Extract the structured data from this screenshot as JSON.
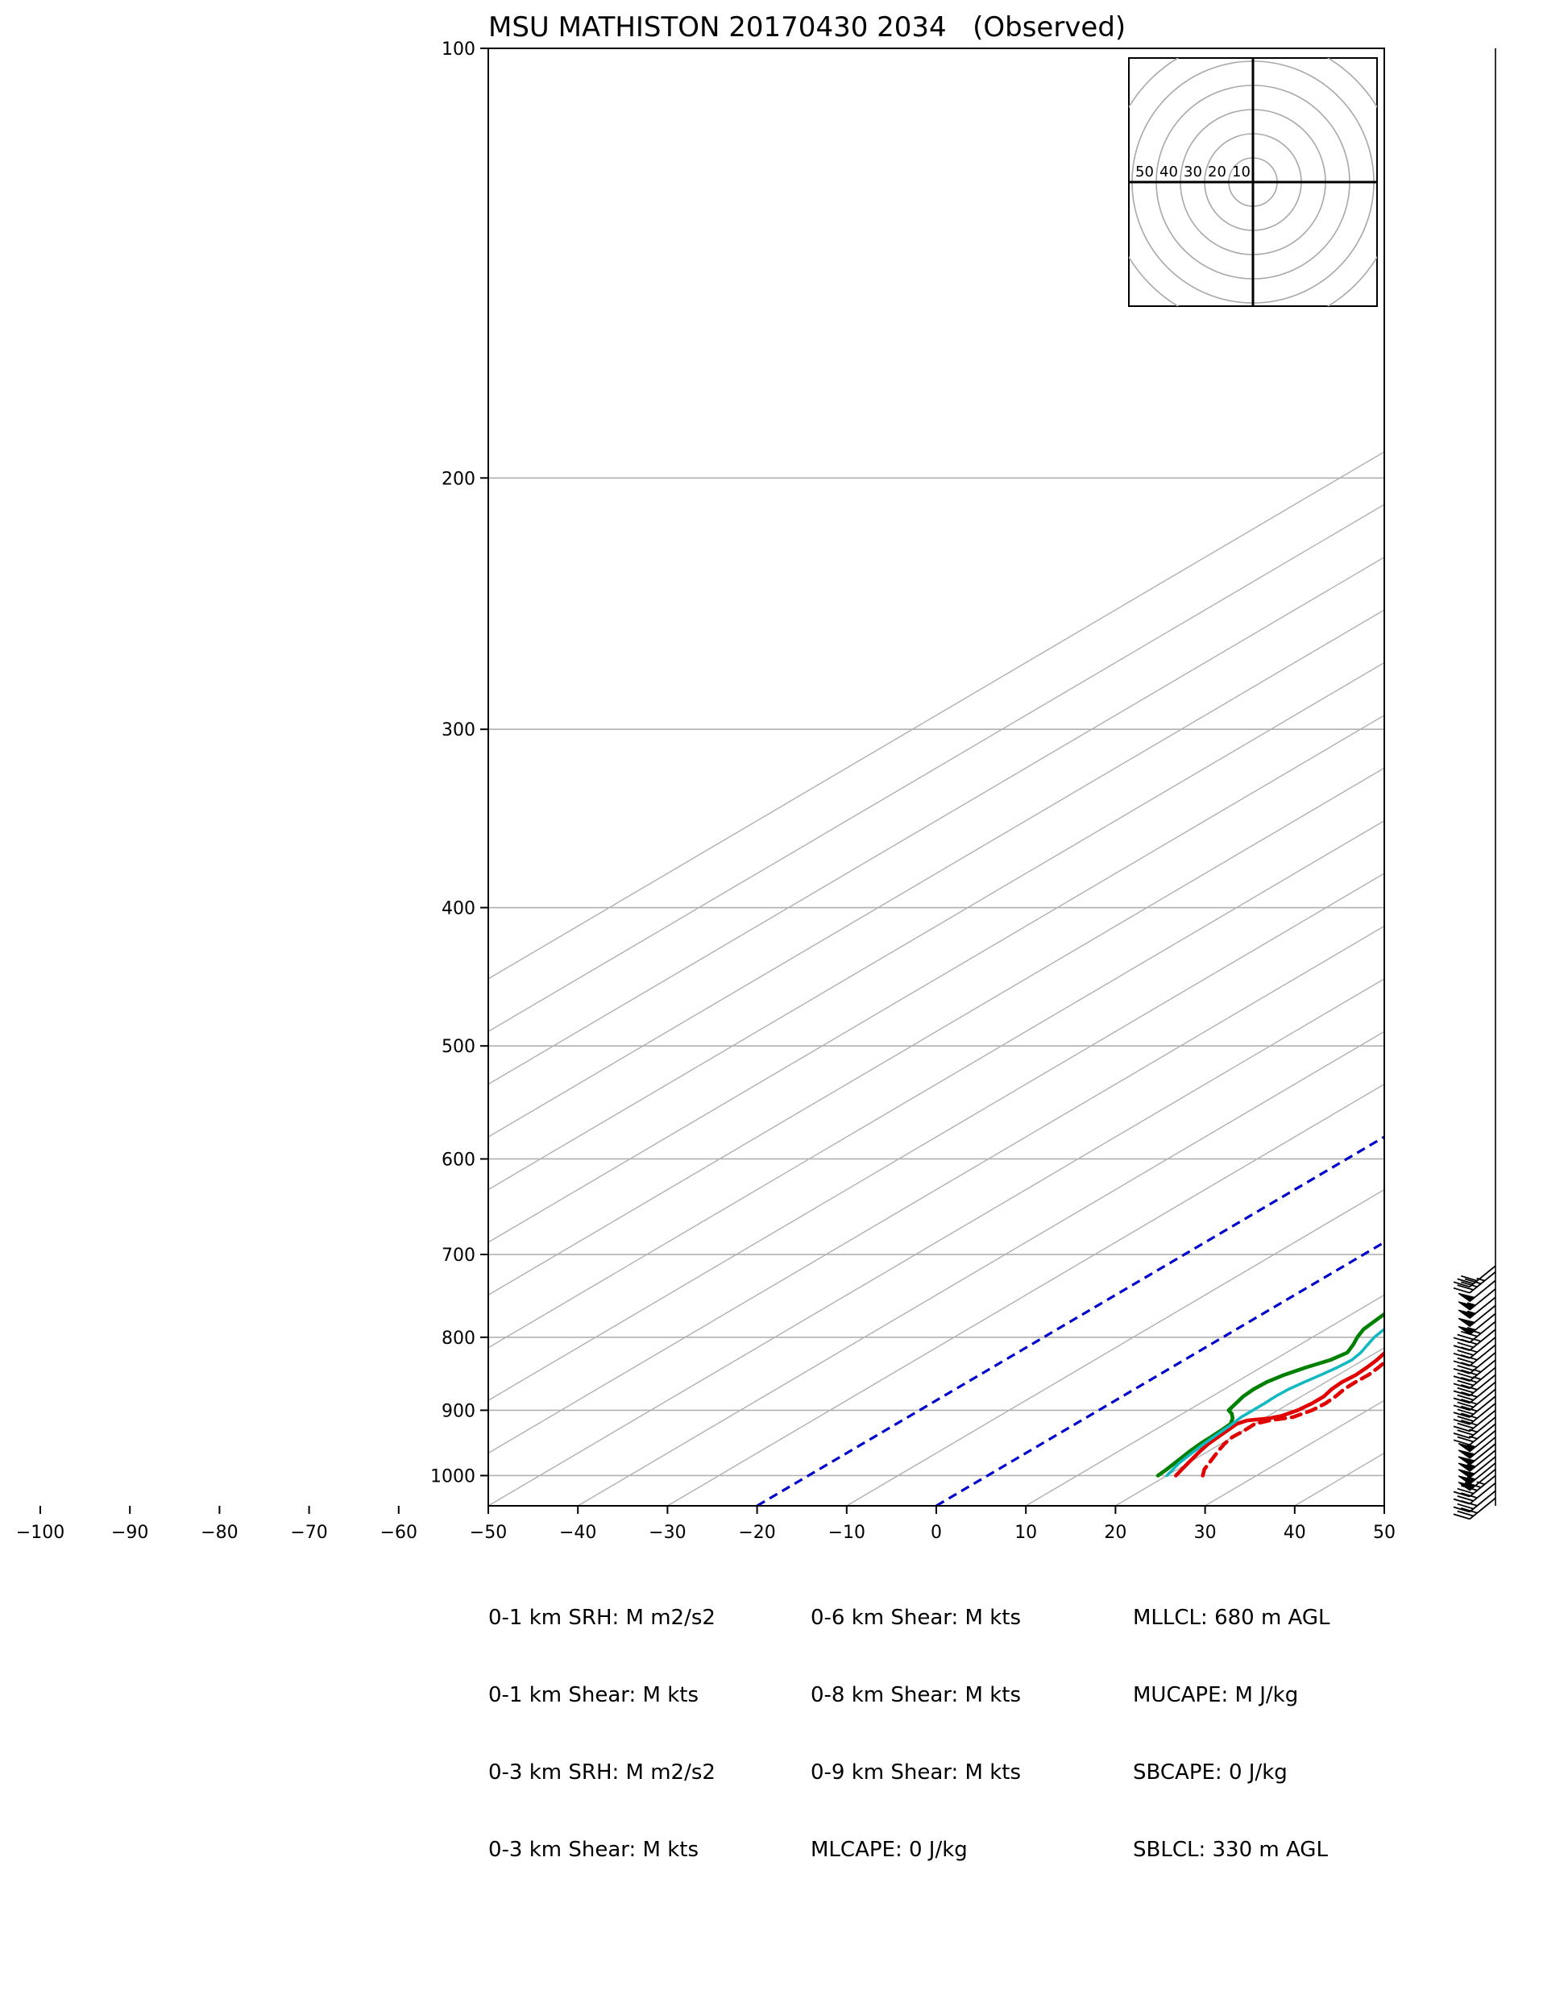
{
  "chart_data": {
    "type": "line",
    "title": "MSU MATHISTON 20170430 2034   (Observed)",
    "x_ticks": [
      -100,
      -90,
      -80,
      -70,
      -60,
      -50,
      -40,
      -30,
      -20,
      -10,
      0,
      10,
      20,
      30,
      40,
      50
    ],
    "y_ticks": [
      100,
      200,
      300,
      400,
      500,
      600,
      700,
      800,
      900,
      1000
    ],
    "xlim": [
      -50,
      50
    ],
    "ylim": [
      1050,
      100
    ],
    "y_scale": "log",
    "skew": true,
    "grid": true,
    "isotherms": [
      -150,
      -140,
      -130,
      -120,
      -110,
      -100,
      -90,
      -80,
      -70,
      -60,
      -50,
      -40,
      -30,
      -20,
      -10,
      0,
      10,
      20,
      30,
      40,
      50
    ],
    "highlighted_isotherms": [
      -20,
      0
    ],
    "colors": {
      "temperature": "#e00000",
      "dewpoint": "#008000",
      "wetbulb": "#14b8c0",
      "virtual_temperature": "#e00000",
      "special_isotherm": "#0000cc",
      "grid": "#b0b0b0"
    },
    "series": [
      {
        "key": "temperature",
        "style": "solid",
        "points": [
          [
            21,
            1000
          ],
          [
            20.5,
            990
          ],
          [
            20,
            980
          ],
          [
            19.5,
            970
          ],
          [
            19,
            960
          ],
          [
            18.6,
            950
          ],
          [
            18.4,
            940
          ],
          [
            18.2,
            930
          ],
          [
            18,
            920
          ],
          [
            18.5,
            915
          ],
          [
            20.5,
            912
          ],
          [
            21.5,
            908
          ],
          [
            22.2,
            900
          ],
          [
            22.5,
            890
          ],
          [
            22.5,
            880
          ],
          [
            22,
            870
          ],
          [
            21.8,
            860
          ],
          [
            22,
            850
          ],
          [
            21.8,
            840
          ],
          [
            21.5,
            830
          ],
          [
            21,
            820
          ],
          [
            20.6,
            810
          ],
          [
            20.1,
            800
          ],
          [
            19.5,
            790
          ],
          [
            19,
            780
          ],
          [
            18.3,
            770
          ],
          [
            17.4,
            760
          ],
          [
            17.3,
            750
          ],
          [
            17.5,
            740
          ],
          [
            17.9,
            730
          ],
          [
            17.9,
            720
          ],
          [
            17.5,
            713
          ]
        ]
      },
      {
        "key": "virtual_temperature",
        "style": "dashed",
        "points": [
          [
            24,
            1000
          ],
          [
            23,
            990
          ],
          [
            22,
            975
          ],
          [
            21,
            960
          ],
          [
            20.4,
            950
          ],
          [
            20,
            940
          ],
          [
            20.1,
            930
          ],
          [
            20,
            920
          ],
          [
            21,
            915
          ],
          [
            23,
            910
          ],
          [
            23.8,
            900
          ],
          [
            24,
            890
          ],
          [
            23.8,
            880
          ],
          [
            23.4,
            870
          ],
          [
            23.3,
            860
          ],
          [
            23.4,
            850
          ],
          [
            23.1,
            840
          ],
          [
            22.7,
            830
          ],
          [
            22.2,
            820
          ],
          [
            21.6,
            810
          ],
          [
            21,
            800
          ],
          [
            20.4,
            790
          ],
          [
            19.9,
            780
          ],
          [
            19.3,
            770
          ],
          [
            18.8,
            760
          ],
          [
            18.7,
            750
          ],
          [
            19,
            740
          ],
          [
            19.1,
            730
          ],
          [
            19,
            720
          ],
          [
            18.5,
            713
          ]
        ]
      },
      {
        "key": "dewpoint",
        "style": "solid",
        "points": [
          [
            19,
            1000
          ],
          [
            18.8,
            990
          ],
          [
            18.5,
            980
          ],
          [
            18.2,
            970
          ],
          [
            17.9,
            960
          ],
          [
            17.7,
            950
          ],
          [
            17.6,
            940
          ],
          [
            17.5,
            930
          ],
          [
            17.3,
            920
          ],
          [
            16.5,
            912
          ],
          [
            15.5,
            905
          ],
          [
            14.5,
            900
          ],
          [
            14,
            890
          ],
          [
            13.5,
            880
          ],
          [
            13.3,
            870
          ],
          [
            13.4,
            860
          ],
          [
            14,
            850
          ],
          [
            15,
            840
          ],
          [
            16.3,
            830
          ],
          [
            16.8,
            820
          ],
          [
            16,
            810
          ],
          [
            15,
            800
          ],
          [
            14.2,
            790
          ],
          [
            13.9,
            780
          ],
          [
            13.6,
            770
          ],
          [
            13.3,
            760
          ],
          [
            12.5,
            755
          ],
          [
            11.9,
            750
          ],
          [
            11.3,
            740
          ],
          [
            11.2,
            730
          ],
          [
            11,
            720
          ],
          [
            10.8,
            713
          ]
        ]
      },
      {
        "key": "wetbulb",
        "style": "solid",
        "points": [
          [
            20,
            1000
          ],
          [
            19.5,
            990
          ],
          [
            19,
            980
          ],
          [
            18.7,
            970
          ],
          [
            18.4,
            960
          ],
          [
            18.1,
            950
          ],
          [
            17.9,
            940
          ],
          [
            17.7,
            930
          ],
          [
            17.5,
            920
          ],
          [
            17.2,
            910
          ],
          [
            17.2,
            900
          ],
          [
            17.2,
            890
          ],
          [
            17.1,
            880
          ],
          [
            17.2,
            870
          ],
          [
            17.6,
            860
          ],
          [
            18.1,
            850
          ],
          [
            18.5,
            840
          ],
          [
            18.7,
            830
          ],
          [
            18.3,
            820
          ],
          [
            17.6,
            810
          ],
          [
            16.9,
            800
          ],
          [
            16.5,
            790
          ],
          [
            16.3,
            780
          ],
          [
            16,
            770
          ],
          [
            15.6,
            760
          ],
          [
            15.2,
            750
          ],
          [
            14.6,
            740
          ],
          [
            14.3,
            730
          ],
          [
            14,
            720
          ],
          [
            13.7,
            713
          ]
        ]
      }
    ],
    "wind_barbs": {
      "pressures": [
        713,
        720,
        730,
        740,
        750,
        760,
        770,
        780,
        790,
        800,
        810,
        820,
        830,
        840,
        850,
        860,
        870,
        880,
        890,
        900,
        910,
        920,
        930,
        940,
        950,
        960,
        970,
        980,
        990,
        1000,
        1012,
        1025,
        1037
      ],
      "speeds_kts": [
        30,
        45,
        50,
        55,
        55,
        50,
        55,
        35,
        35,
        30,
        30,
        30,
        35,
        35,
        30,
        30,
        30,
        30,
        30,
        30,
        25,
        25,
        55,
        50,
        50,
        55,
        50,
        55,
        55,
        45,
        30,
        30,
        30
      ]
    },
    "hodograph": {
      "ring_labels": [
        "50",
        "40",
        "30",
        "20",
        "10"
      ]
    }
  },
  "stats": {
    "col1": [
      "0-1 km SRH: M m2/s2",
      "0-1 km Shear: M kts",
      "0-3 km SRH: M m2/s2",
      "0-3 km Shear: M kts"
    ],
    "col2": [
      "0-6 km Shear: M kts",
      "0-8 km Shear: M kts",
      "0-9 km Shear: M kts",
      "MLCAPE: 0 J/kg"
    ],
    "col3": [
      "MLLCL: 680 m AGL",
      "MUCAPE: M J/kg",
      "SBCAPE: 0 J/kg",
      "SBLCL: 330 m AGL"
    ]
  }
}
